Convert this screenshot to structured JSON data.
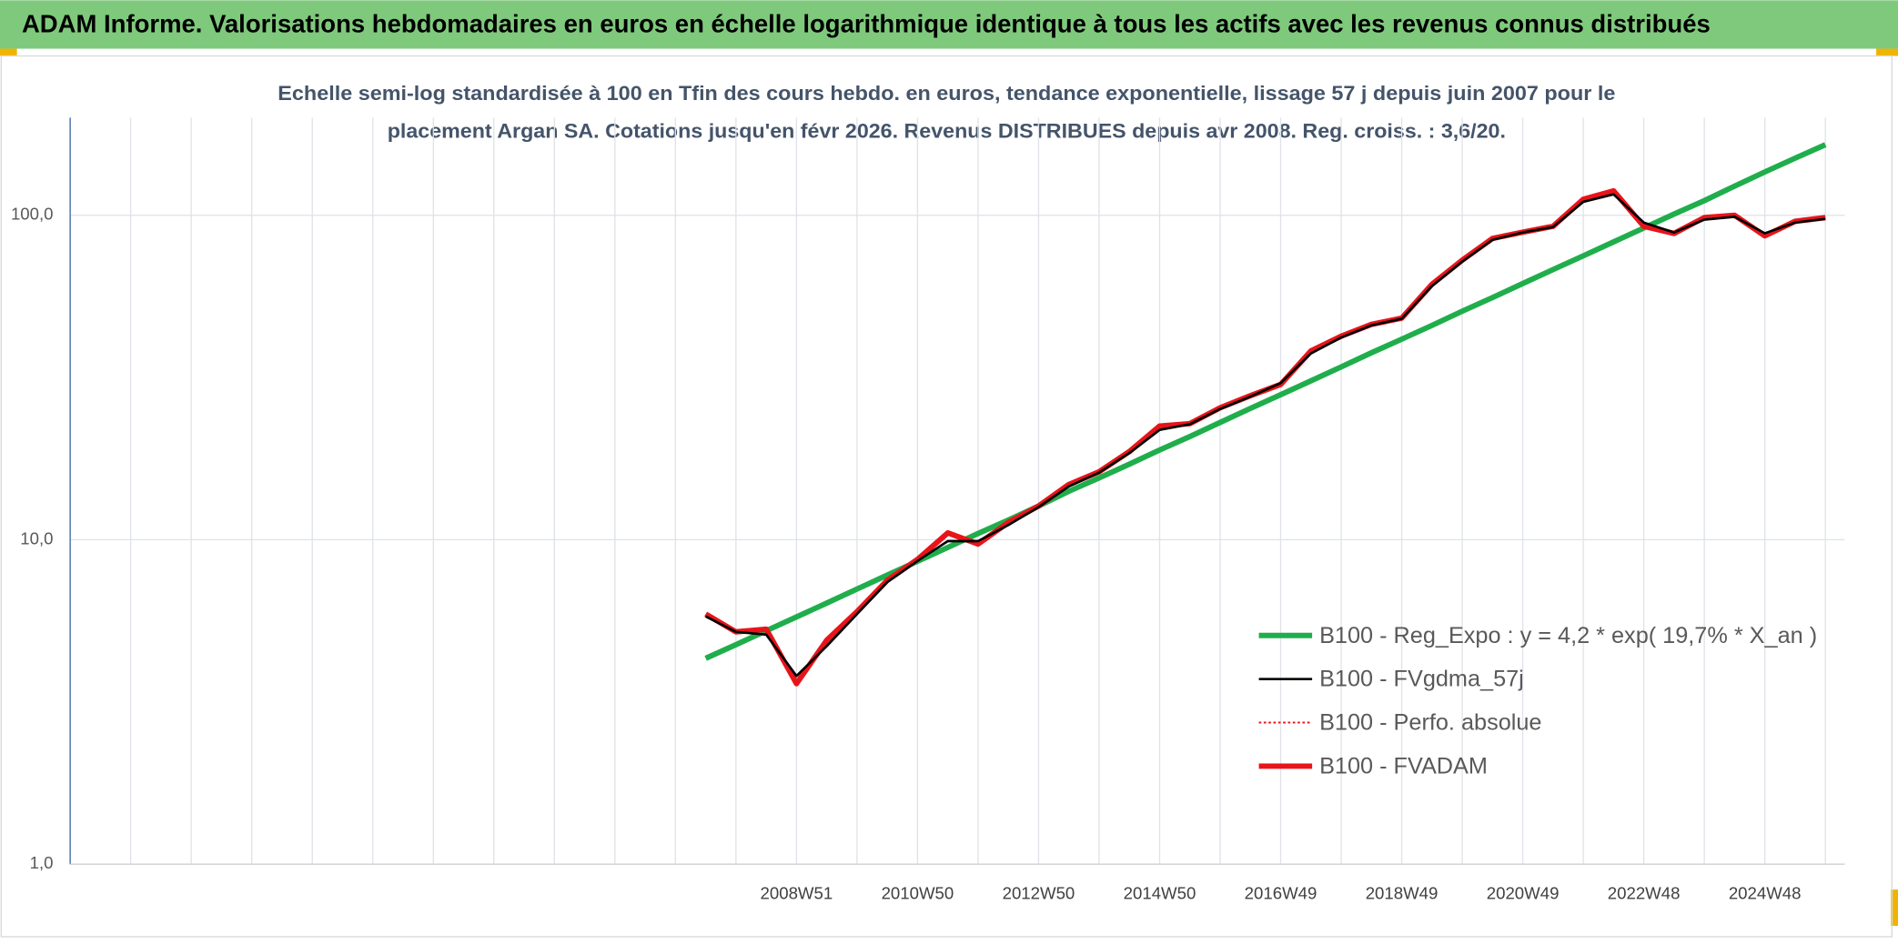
{
  "chart_data": {
    "type": "line",
    "title": "ADAM Informe. Valorisations hebdomadaires en euros en échelle logarithmique identique à tous les actifs avec les revenus connus distribués",
    "subtitle": [
      "Echelle semi-log standardisée à 100 en Tfin des cours hebdo. en euros, tendance exponentielle, lissage 57 j depuis juin 2007 pour le",
      "placement Argan SA. Cotations jusqu'en févr 2026. Revenus DISTRIBUES depuis avr 2008. Reg. croiss. : 3,6/20."
    ],
    "categories": [
      null,
      null,
      null,
      null,
      null,
      null,
      null,
      null,
      null,
      null,
      null,
      null,
      null,
      null,
      null,
      null,
      null,
      null,
      null,
      null,
      null,
      null,
      null,
      null,
      "2008W51",
      null,
      null,
      null,
      "2010W50",
      null,
      null,
      null,
      "2012W50",
      null,
      null,
      null,
      "2014W50",
      null,
      null,
      null,
      "2016W49",
      null,
      null,
      null,
      "2018W49",
      null,
      null,
      null,
      "2020W49",
      null,
      null,
      null,
      "2022W48",
      null,
      null,
      null,
      "2024W48",
      null,
      null
    ],
    "log_scale": true,
    "grid": true,
    "legend": "lower right",
    "ylim": [
      1,
      200
    ],
    "yticks": [
      {
        "value": 1,
        "label": "1,0"
      },
      {
        "value": 10,
        "label": "10,0"
      },
      {
        "value": 100,
        "label": "100,0"
      }
    ],
    "series": [
      {
        "name": "B100 - Reg_Expo : y = 4,2 * exp( 19,7% *  X_an )",
        "color": "#1fae4b",
        "style": "thick",
        "values": [
          null,
          null,
          null,
          null,
          null,
          null,
          null,
          null,
          null,
          null,
          null,
          null,
          null,
          null,
          null,
          null,
          null,
          null,
          null,
          null,
          null,
          4.31,
          4.75,
          5.24,
          5.78,
          6.38,
          7.05,
          7.78,
          8.58,
          9.47,
          10.45,
          11.5,
          12.7,
          14.1,
          15.5,
          17.1,
          18.9,
          20.8,
          23.0,
          25.4,
          28.0,
          30.9,
          34.1,
          37.7,
          41.5,
          45.8,
          50.6,
          55.8,
          61.6,
          68.0,
          75.0,
          82.8,
          91.4,
          100.9,
          111,
          123,
          136,
          150,
          165
        ]
      },
      {
        "name": "B100 - FVgdma_57j",
        "color": "#000000",
        "style": "thin",
        "values": [
          null,
          null,
          null,
          null,
          null,
          null,
          null,
          null,
          null,
          null,
          null,
          null,
          null,
          null,
          null,
          null,
          null,
          null,
          null,
          null,
          null,
          5.8,
          5.2,
          5.1,
          3.8,
          4.7,
          5.9,
          7.4,
          8.6,
          9.9,
          9.9,
          11.1,
          12.6,
          14.6,
          16.1,
          18.5,
          21.8,
          22.7,
          25.3,
          27.6,
          30.4,
          37.5,
          42.0,
          45.8,
          48.0,
          60.5,
          72.0,
          84.0,
          88.5,
          92.0,
          110,
          116,
          95.0,
          88.5,
          97.0,
          99.0,
          88.0,
          95.0,
          97.5
        ]
      },
      {
        "name": "B100 - Perfo. absolue",
        "color": "#e8141b",
        "style": "dotted",
        "values": [
          null,
          null,
          null,
          null,
          null,
          null,
          null,
          null,
          null,
          null,
          null,
          null,
          null,
          null,
          null,
          null,
          null,
          null,
          null,
          null,
          null,
          5.9,
          5.2,
          5.3,
          3.6,
          4.9,
          6.0,
          7.5,
          8.7,
          10.5,
          9.7,
          11.3,
          12.7,
          14.8,
          16.2,
          18.7,
          22.4,
          22.8,
          25.5,
          27.8,
          30.1,
          38.2,
          42.4,
          46.1,
          48.2,
          61.3,
          72.7,
          84.9,
          88.7,
          92.5,
          112,
          119,
          92.5,
          87.9,
          98.4,
          100,
          86.4,
          95.8,
          98.4
        ]
      },
      {
        "name": "B100 - FVADAM",
        "color": "#e8141b",
        "style": "thick",
        "values": [
          null,
          null,
          null,
          null,
          null,
          null,
          null,
          null,
          null,
          null,
          null,
          null,
          null,
          null,
          null,
          null,
          null,
          null,
          null,
          null,
          null,
          5.9,
          5.2,
          5.3,
          3.6,
          4.9,
          6.0,
          7.5,
          8.7,
          10.5,
          9.7,
          11.3,
          12.7,
          14.8,
          16.2,
          18.7,
          22.4,
          22.8,
          25.5,
          27.8,
          30.1,
          38.2,
          42.4,
          46.1,
          48.2,
          61.3,
          72.7,
          84.9,
          88.7,
          92.5,
          112,
          119,
          92.5,
          87.9,
          98.4,
          100,
          86.4,
          95.8,
          98.4
        ]
      }
    ]
  }
}
